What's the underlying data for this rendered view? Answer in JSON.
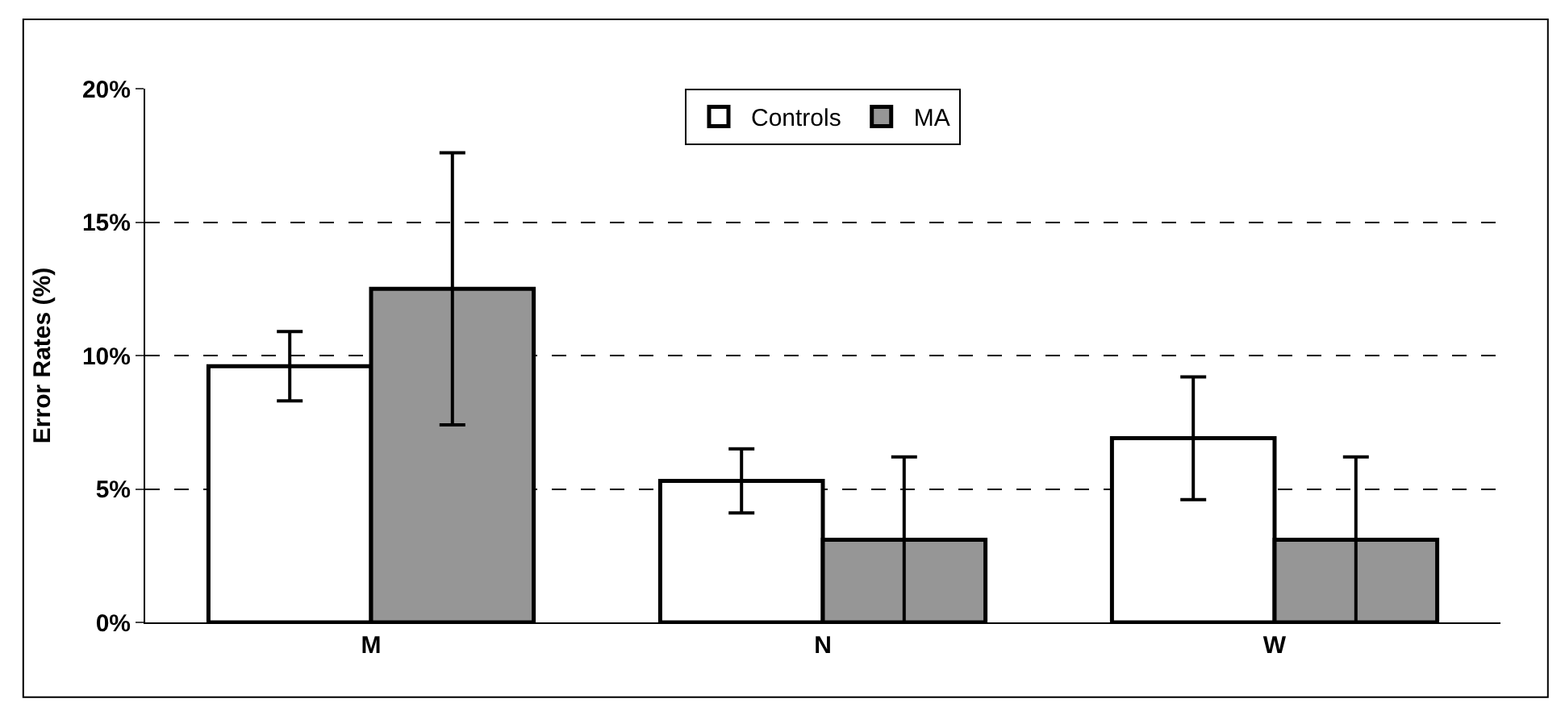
{
  "chart_data": {
    "type": "bar",
    "ylabel": "Error Rates (%)",
    "categories": [
      "M",
      "N",
      "W"
    ],
    "series": [
      {
        "name": "Controls",
        "color": "#ffffff",
        "values": [
          9.6,
          5.3,
          6.9
        ],
        "errors": [
          1.3,
          1.2,
          2.3
        ]
      },
      {
        "name": "MA",
        "color": "#969696",
        "values": [
          12.5,
          3.1,
          3.1
        ],
        "errors": [
          5.1,
          3.1,
          3.1
        ]
      }
    ],
    "ylim": [
      0,
      20
    ],
    "yticks": [
      {
        "value": 0,
        "label": "0%"
      },
      {
        "value": 5,
        "label": "5%"
      },
      {
        "value": 10,
        "label": "10%"
      },
      {
        "value": 15,
        "label": "15%"
      },
      {
        "value": 20,
        "label": "20%"
      }
    ],
    "grid": "y",
    "legend": "top"
  }
}
